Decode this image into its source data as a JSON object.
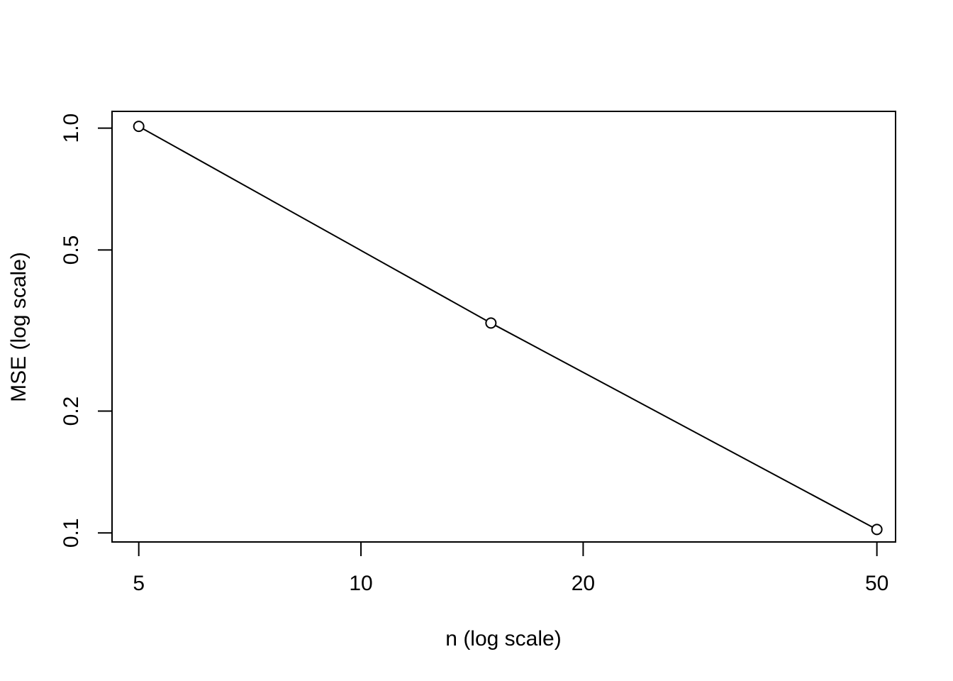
{
  "chart_data": {
    "type": "line",
    "title": "",
    "xlabel": "n (log scale)",
    "ylabel": "MSE (log scale)",
    "x_scale": "log",
    "y_scale": "log",
    "xlim": [
      4.6,
      53
    ],
    "ylim": [
      0.095,
      1.1
    ],
    "x_ticks": [
      5,
      10,
      20,
      50
    ],
    "x_tick_labels": [
      "5",
      "10",
      "20",
      "50"
    ],
    "y_ticks": [
      0.1,
      0.2,
      0.5,
      1.0
    ],
    "y_tick_labels": [
      "0.1",
      "0.2",
      "0.5",
      "1.0"
    ],
    "grid": false,
    "legend": "none",
    "series": [
      {
        "x": [
          5,
          15,
          50
        ],
        "y": [
          1.01,
          0.33,
          0.102
        ],
        "color": "#000000",
        "marker": "open-circle"
      }
    ]
  }
}
